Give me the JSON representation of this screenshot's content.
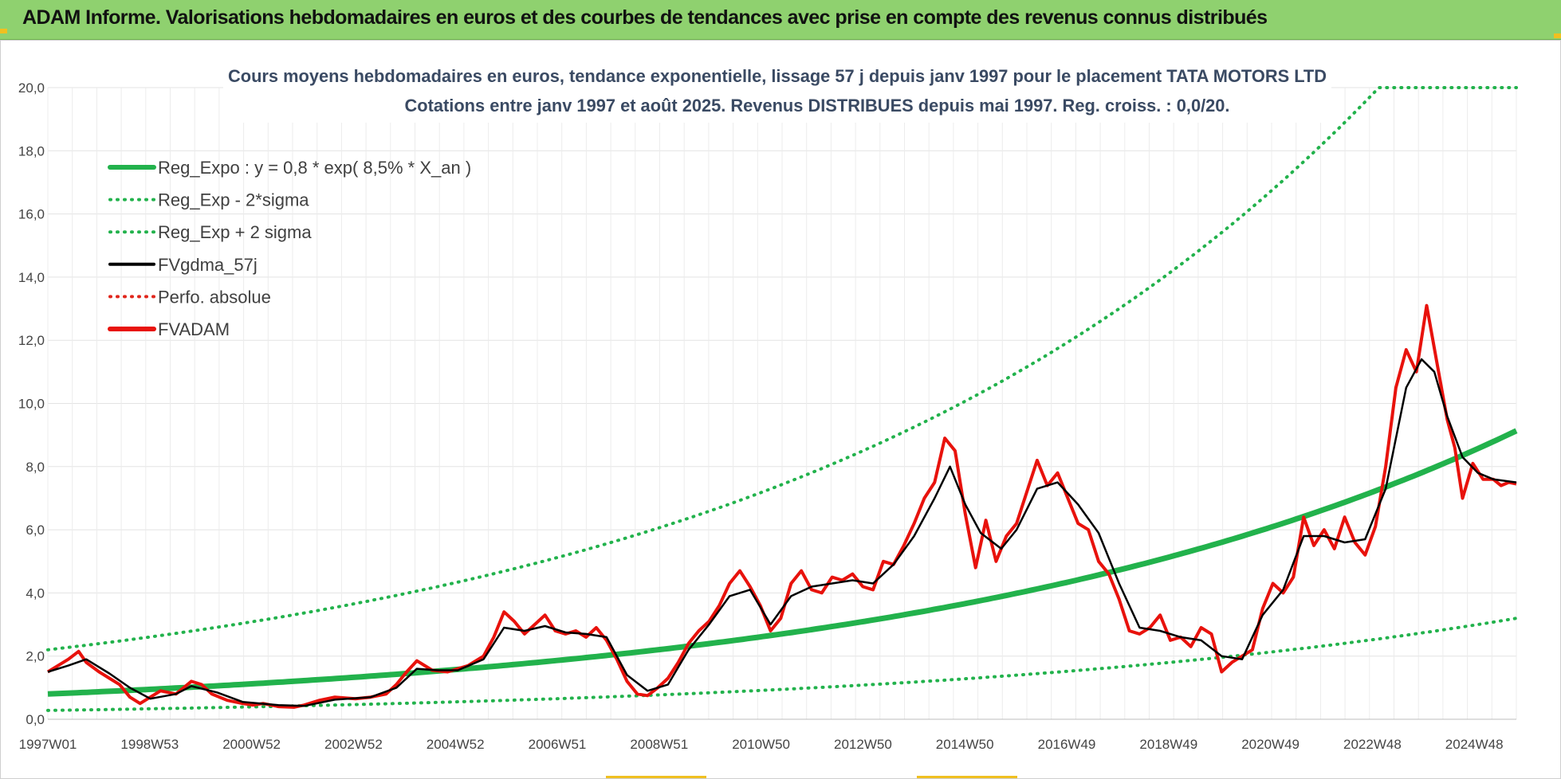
{
  "header": {
    "title": "ADAM Informe. Valorisations hebdomadaires en euros et des courbes de tendances avec prise en compte des revenus connus distribués"
  },
  "colors": {
    "header_bg": "#8fd16f",
    "reg_expo": "#22b24c",
    "band": "#22b24c",
    "fvgdma": "#000000",
    "perfo": "#e0261b",
    "fvadam": "#e8120c",
    "grid": "#e3e3e3"
  },
  "chart_data": {
    "type": "line",
    "title": "Cours moyens hebdomadaires en euros, tendance exponentielle, lissage 57 j depuis janv 1997 pour le placement TATA MOTORS LTD",
    "subtitle": "Cotations entre janv 1997 et août 2025. Revenus DISTRIBUES depuis mai 1997. Reg. croiss. : 0,0/20.",
    "xlabel": "",
    "ylabel": "",
    "ylim": [
      0,
      20
    ],
    "y_ticks": [
      "0,0",
      "2,0",
      "4,0",
      "6,0",
      "8,0",
      "10,0",
      "12,0",
      "14,0",
      "16,0",
      "18,0",
      "20,0"
    ],
    "x_ticks": [
      "1997W01",
      "1998W53",
      "2000W52",
      "2002W52",
      "2004W52",
      "2006W51",
      "2008W51",
      "2010W50",
      "2012W50",
      "2014W50",
      "2016W49",
      "2018W49",
      "2020W49",
      "2022W48",
      "2024W48"
    ],
    "xlim": [
      1997.0,
      2025.65
    ],
    "grid": true,
    "legend_position": "top-left",
    "legend": [
      {
        "label": "Reg_Expo : y = 0,8 * exp( 8,5% *  X_an )",
        "style": "solid-thick",
        "color": "#22b24c"
      },
      {
        "label": "Reg_Exp - 2*sigma",
        "style": "dotted",
        "color": "#22b24c"
      },
      {
        "label": "Reg_Exp + 2 sigma",
        "style": "dotted",
        "color": "#22b24c"
      },
      {
        "label": "FVgdma_57j",
        "style": "solid",
        "color": "#000000"
      },
      {
        "label": "Perfo. absolue",
        "style": "dotted",
        "color": "#e0261b"
      },
      {
        "label": "FVADAM",
        "style": "solid-thick",
        "color": "#e8120c"
      }
    ],
    "regression": {
      "a": 0.8,
      "rate": 0.085,
      "lower_factor": 0.35,
      "upper_factor": 2.75,
      "cap": 20
    },
    "series": [
      {
        "name": "FVADAM",
        "x": [
          1997.0,
          1997.2,
          1997.4,
          1997.6,
          1997.75,
          1998.0,
          1998.2,
          1998.4,
          1998.6,
          1998.8,
          1999.0,
          1999.2,
          1999.5,
          1999.8,
          2000.0,
          2000.2,
          2000.5,
          2000.8,
          2001.0,
          2001.2,
          2001.5,
          2001.8,
          2002.0,
          2002.3,
          2002.6,
          2003.0,
          2003.3,
          2003.6,
          2003.8,
          2004.0,
          2004.2,
          2004.5,
          2004.8,
          2005.0,
          2005.2,
          2005.5,
          2005.7,
          2005.9,
          2006.1,
          2006.3,
          2006.5,
          2006.7,
          2006.9,
          2007.1,
          2007.3,
          2007.5,
          2007.7,
          2007.9,
          2008.1,
          2008.3,
          2008.5,
          2008.7,
          2008.9,
          2009.1,
          2009.3,
          2009.5,
          2009.7,
          2009.9,
          2010.1,
          2010.3,
          2010.5,
          2010.7,
          2010.9,
          2011.1,
          2011.3,
          2011.5,
          2011.7,
          2011.9,
          2012.1,
          2012.3,
          2012.5,
          2012.7,
          2012.9,
          2013.1,
          2013.3,
          2013.5,
          2013.7,
          2013.9,
          2014.1,
          2014.3,
          2014.5,
          2014.7,
          2014.9,
          2015.1,
          2015.3,
          2015.5,
          2015.7,
          2015.9,
          2016.1,
          2016.3,
          2016.5,
          2016.7,
          2016.9,
          2017.1,
          2017.3,
          2017.5,
          2017.7,
          2017.9,
          2018.1,
          2018.3,
          2018.5,
          2018.7,
          2018.9,
          2019.1,
          2019.3,
          2019.5,
          2019.7,
          2019.9,
          2020.1,
          2020.3,
          2020.5,
          2020.7,
          2020.9,
          2021.1,
          2021.3,
          2021.5,
          2021.7,
          2021.9,
          2022.1,
          2022.3,
          2022.5,
          2022.7,
          2022.9,
          2023.1,
          2023.3,
          2023.5,
          2023.7,
          2023.9,
          2024.1,
          2024.3,
          2024.45,
          2024.6,
          2024.8,
          2025.0,
          2025.2,
          2025.35,
          2025.5,
          2025.65
        ],
        "values": [
          1.5,
          1.7,
          1.9,
          2.15,
          1.8,
          1.5,
          1.3,
          1.1,
          0.7,
          0.5,
          0.7,
          0.9,
          0.8,
          1.2,
          1.1,
          0.8,
          0.6,
          0.5,
          0.45,
          0.5,
          0.4,
          0.38,
          0.45,
          0.6,
          0.7,
          0.65,
          0.7,
          0.8,
          1.1,
          1.5,
          1.85,
          1.55,
          1.5,
          1.6,
          1.7,
          2.0,
          2.6,
          3.4,
          3.1,
          2.7,
          3.0,
          3.3,
          2.8,
          2.7,
          2.8,
          2.6,
          2.9,
          2.5,
          1.9,
          1.2,
          0.8,
          0.75,
          1.0,
          1.3,
          1.8,
          2.4,
          2.8,
          3.1,
          3.6,
          4.3,
          4.7,
          4.2,
          3.6,
          2.8,
          3.2,
          4.3,
          4.7,
          4.1,
          4.0,
          4.5,
          4.4,
          4.6,
          4.2,
          4.1,
          5.0,
          4.9,
          5.5,
          6.2,
          7.0,
          7.5,
          8.9,
          8.5,
          6.5,
          4.8,
          6.3,
          5.0,
          5.8,
          6.2,
          7.2,
          8.2,
          7.4,
          7.8,
          7.0,
          6.2,
          6.0,
          5.0,
          4.6,
          3.8,
          2.8,
          2.7,
          2.9,
          3.3,
          2.5,
          2.6,
          2.3,
          2.9,
          2.7,
          1.5,
          1.8,
          2.0,
          2.2,
          3.5,
          4.3,
          4.0,
          4.5,
          6.4,
          5.5,
          6.0,
          5.4,
          6.4,
          5.6,
          5.2,
          6.1,
          8.0,
          10.5,
          11.7,
          11.0,
          13.1,
          11.3,
          9.5,
          8.6,
          7.0,
          8.1,
          7.6,
          7.6,
          7.4,
          7.5,
          7.45
        ],
        "color": "#e8120c"
      },
      {
        "name": "FVgdma_57j",
        "x": [
          1997.0,
          1997.4,
          1997.75,
          1998.2,
          1998.6,
          1999.0,
          1999.5,
          1999.8,
          2000.3,
          2000.8,
          2001.5,
          2002.0,
          2002.6,
          2003.3,
          2003.8,
          2004.2,
          2004.6,
          2005.0,
          2005.5,
          2005.9,
          2006.3,
          2006.7,
          2007.1,
          2007.5,
          2007.9,
          2008.3,
          2008.7,
          2009.1,
          2009.5,
          2009.9,
          2010.3,
          2010.7,
          2011.1,
          2011.5,
          2011.9,
          2012.3,
          2012.7,
          2013.1,
          2013.5,
          2013.9,
          2014.3,
          2014.6,
          2014.9,
          2015.2,
          2015.6,
          2015.9,
          2016.3,
          2016.7,
          2017.1,
          2017.5,
          2017.9,
          2018.3,
          2018.7,
          2019.1,
          2019.5,
          2019.9,
          2020.3,
          2020.7,
          2021.1,
          2021.5,
          2021.9,
          2022.3,
          2022.7,
          2023.1,
          2023.5,
          2023.8,
          2024.05,
          2024.3,
          2024.6,
          2024.9,
          2025.2,
          2025.65
        ],
        "values": [
          1.5,
          1.7,
          1.9,
          1.45,
          1.0,
          0.65,
          0.8,
          1.05,
          0.85,
          0.55,
          0.45,
          0.42,
          0.62,
          0.7,
          1.0,
          1.6,
          1.55,
          1.55,
          1.9,
          2.9,
          2.8,
          2.95,
          2.75,
          2.7,
          2.6,
          1.4,
          0.9,
          1.1,
          2.2,
          3.0,
          3.9,
          4.1,
          3.0,
          3.9,
          4.2,
          4.3,
          4.4,
          4.3,
          4.9,
          5.8,
          7.0,
          8.0,
          6.8,
          5.9,
          5.4,
          6.0,
          7.3,
          7.5,
          6.8,
          5.9,
          4.3,
          2.9,
          2.8,
          2.6,
          2.5,
          2.0,
          1.9,
          3.3,
          4.1,
          5.8,
          5.8,
          5.6,
          5.7,
          7.3,
          10.5,
          11.4,
          11.0,
          9.6,
          8.3,
          7.8,
          7.6,
          7.5
        ],
        "color": "#000000"
      }
    ]
  }
}
